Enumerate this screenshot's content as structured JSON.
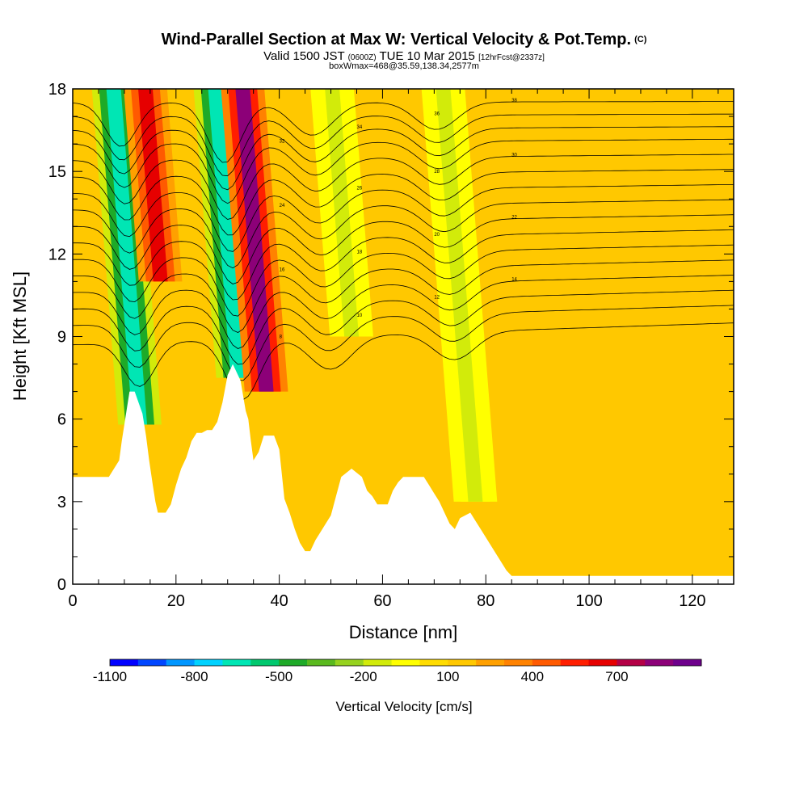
{
  "header": {
    "title": "Wind-Parallel Section at Max W: Vertical Velocity & Pot.Temp.",
    "title_unit": "(C)",
    "subtitle_pre": "Valid 1500 JST",
    "subtitle_z": "(0600Z)",
    "subtitle_mid": "TUE 10 Mar 2015",
    "subtitle_fcst": "[12hrFcst@2337z]",
    "subtitle2": "boxWmax=468@35.59,138.34,2577m"
  },
  "colors": {
    "background_field": "#ffc800",
    "terrain_fill": "#ffffff",
    "frame": "#000000",
    "contour": "#000000"
  },
  "chart_data": {
    "type": "heatmap",
    "xlabel": "Distance [nm]",
    "ylabel": "Height [Kft MSL]",
    "xlim": [
      0,
      128
    ],
    "ylim": [
      0,
      18
    ],
    "x_ticks": [
      0,
      20,
      40,
      60,
      80,
      100,
      120
    ],
    "y_ticks": [
      0,
      3,
      6,
      9,
      12,
      15,
      18
    ],
    "x_tick_labels": [
      "0",
      "20",
      "40",
      "60",
      "80",
      "100",
      "120"
    ],
    "y_tick_labels": [
      "0",
      "3",
      "6",
      "9",
      "12",
      "15",
      "18"
    ],
    "terrain_kft": [
      [
        0,
        3.9
      ],
      [
        7,
        3.9
      ],
      [
        8,
        4.2
      ],
      [
        9,
        4.5
      ],
      [
        9.5,
        5.2
      ],
      [
        10,
        5.8
      ],
      [
        10.5,
        6.4
      ],
      [
        11,
        7.0
      ],
      [
        12,
        7.0
      ],
      [
        13.5,
        6.2
      ],
      [
        14.2,
        5.4
      ],
      [
        14.8,
        4.5
      ],
      [
        15.5,
        3.6
      ],
      [
        16,
        3.0
      ],
      [
        16.5,
        2.6
      ],
      [
        18,
        2.6
      ],
      [
        19,
        2.9
      ],
      [
        20,
        3.6
      ],
      [
        21,
        4.2
      ],
      [
        22,
        4.6
      ],
      [
        23,
        5.2
      ],
      [
        24,
        5.5
      ],
      [
        25,
        5.5
      ],
      [
        26,
        5.6
      ],
      [
        27,
        5.6
      ],
      [
        28,
        5.9
      ],
      [
        29,
        6.6
      ],
      [
        30,
        7.6
      ],
      [
        31,
        8.0
      ],
      [
        32.5,
        7.4
      ],
      [
        33.5,
        6.3
      ],
      [
        34,
        6.0
      ],
      [
        34.5,
        5.2
      ],
      [
        35,
        4.5
      ],
      [
        36,
        4.8
      ],
      [
        37,
        5.4
      ],
      [
        38,
        5.4
      ],
      [
        39,
        5.4
      ],
      [
        40,
        4.9
      ],
      [
        41,
        3.1
      ],
      [
        42,
        2.6
      ],
      [
        43,
        2.0
      ],
      [
        44,
        1.5
      ],
      [
        45,
        1.2
      ],
      [
        46,
        1.2
      ],
      [
        47,
        1.6
      ],
      [
        48,
        1.9
      ],
      [
        49,
        2.2
      ],
      [
        50,
        2.5
      ],
      [
        51,
        3.2
      ],
      [
        52,
        3.9
      ],
      [
        54,
        4.2
      ],
      [
        56,
        3.9
      ],
      [
        57,
        3.4
      ],
      [
        58,
        3.2
      ],
      [
        59,
        2.9
      ],
      [
        61,
        2.9
      ],
      [
        62,
        3.4
      ],
      [
        63,
        3.7
      ],
      [
        64,
        3.9
      ],
      [
        68,
        3.9
      ],
      [
        69,
        3.6
      ],
      [
        70,
        3.3
      ],
      [
        71,
        3.0
      ],
      [
        72,
        2.6
      ],
      [
        73,
        2.2
      ],
      [
        74,
        2.0
      ],
      [
        75,
        2.4
      ],
      [
        77,
        2.6
      ],
      [
        78,
        2.3
      ],
      [
        79,
        2.0
      ],
      [
        80,
        1.7
      ],
      [
        81,
        1.4
      ],
      [
        82,
        1.1
      ],
      [
        83,
        0.8
      ],
      [
        84,
        0.5
      ],
      [
        85,
        0.3
      ],
      [
        87,
        0.3
      ],
      [
        128,
        0.3
      ]
    ],
    "vertical_velocity_features": [
      {
        "x_center": 13,
        "value": -700,
        "note": "descent",
        "top": 18,
        "bottom": 5.8
      },
      {
        "x_center": 17,
        "value": 600,
        "note": "ascent",
        "top": 18,
        "bottom": 11
      },
      {
        "x_center": 32,
        "value": -700,
        "note": "descent",
        "top": 18,
        "bottom": 7.5
      },
      {
        "x_center": 37.5,
        "value": 800,
        "note": "ascent",
        "top": 18,
        "bottom": 7.0
      },
      {
        "x_center": 54,
        "value": -200,
        "note": "descent",
        "top": 18,
        "bottom": 9
      },
      {
        "x_center": 78,
        "value": -200,
        "note": "descent",
        "top": 18,
        "bottom": 3
      }
    ],
    "isentropes_c": [
      {
        "label": "8",
        "x0": 0,
        "y0": 8.7
      },
      {
        "label": "10",
        "x0": 0,
        "y0": 9.4
      },
      {
        "label": "12",
        "x0": 0,
        "y0": 10.0
      },
      {
        "label": "14",
        "x0": 0,
        "y0": 10.6
      },
      {
        "label": "16",
        "x0": 0,
        "y0": 11.2
      },
      {
        "label": "18",
        "x0": 0,
        "y0": 11.8
      },
      {
        "label": "20",
        "x0": 0,
        "y0": 12.4
      },
      {
        "label": "22",
        "x0": 0,
        "y0": 13.0
      },
      {
        "label": "24",
        "x0": 0,
        "y0": 13.6
      },
      {
        "label": "26",
        "x0": 0,
        "y0": 14.2
      },
      {
        "label": "28",
        "x0": 0,
        "y0": 14.8
      },
      {
        "label": "30",
        "x0": 0,
        "y0": 15.4
      },
      {
        "label": "32",
        "x0": 0,
        "y0": 16.0
      },
      {
        "label": "34",
        "x0": 0,
        "y0": 16.5
      },
      {
        "label": "36",
        "x0": 0,
        "y0": 17.0
      },
      {
        "label": "38",
        "x0": 0,
        "y0": 17.5
      }
    ],
    "colorbar": {
      "title": "Vertical Velocity [cm/s]",
      "colors": [
        "#0000ff",
        "#0046ff",
        "#0096ff",
        "#00d2ff",
        "#00e6b4",
        "#00c86e",
        "#1eaa28",
        "#5ab91e",
        "#96d21e",
        "#d2eb0a",
        "#ffff00",
        "#ffdc00",
        "#ffc800",
        "#ffa000",
        "#ff8200",
        "#ff5a00",
        "#ff1e00",
        "#e60000",
        "#b40046",
        "#8c0078",
        "#6e008c"
      ],
      "tick_labels": [
        "-1100",
        "-800",
        "-500",
        "-200",
        "100",
        "400",
        "700"
      ]
    }
  }
}
